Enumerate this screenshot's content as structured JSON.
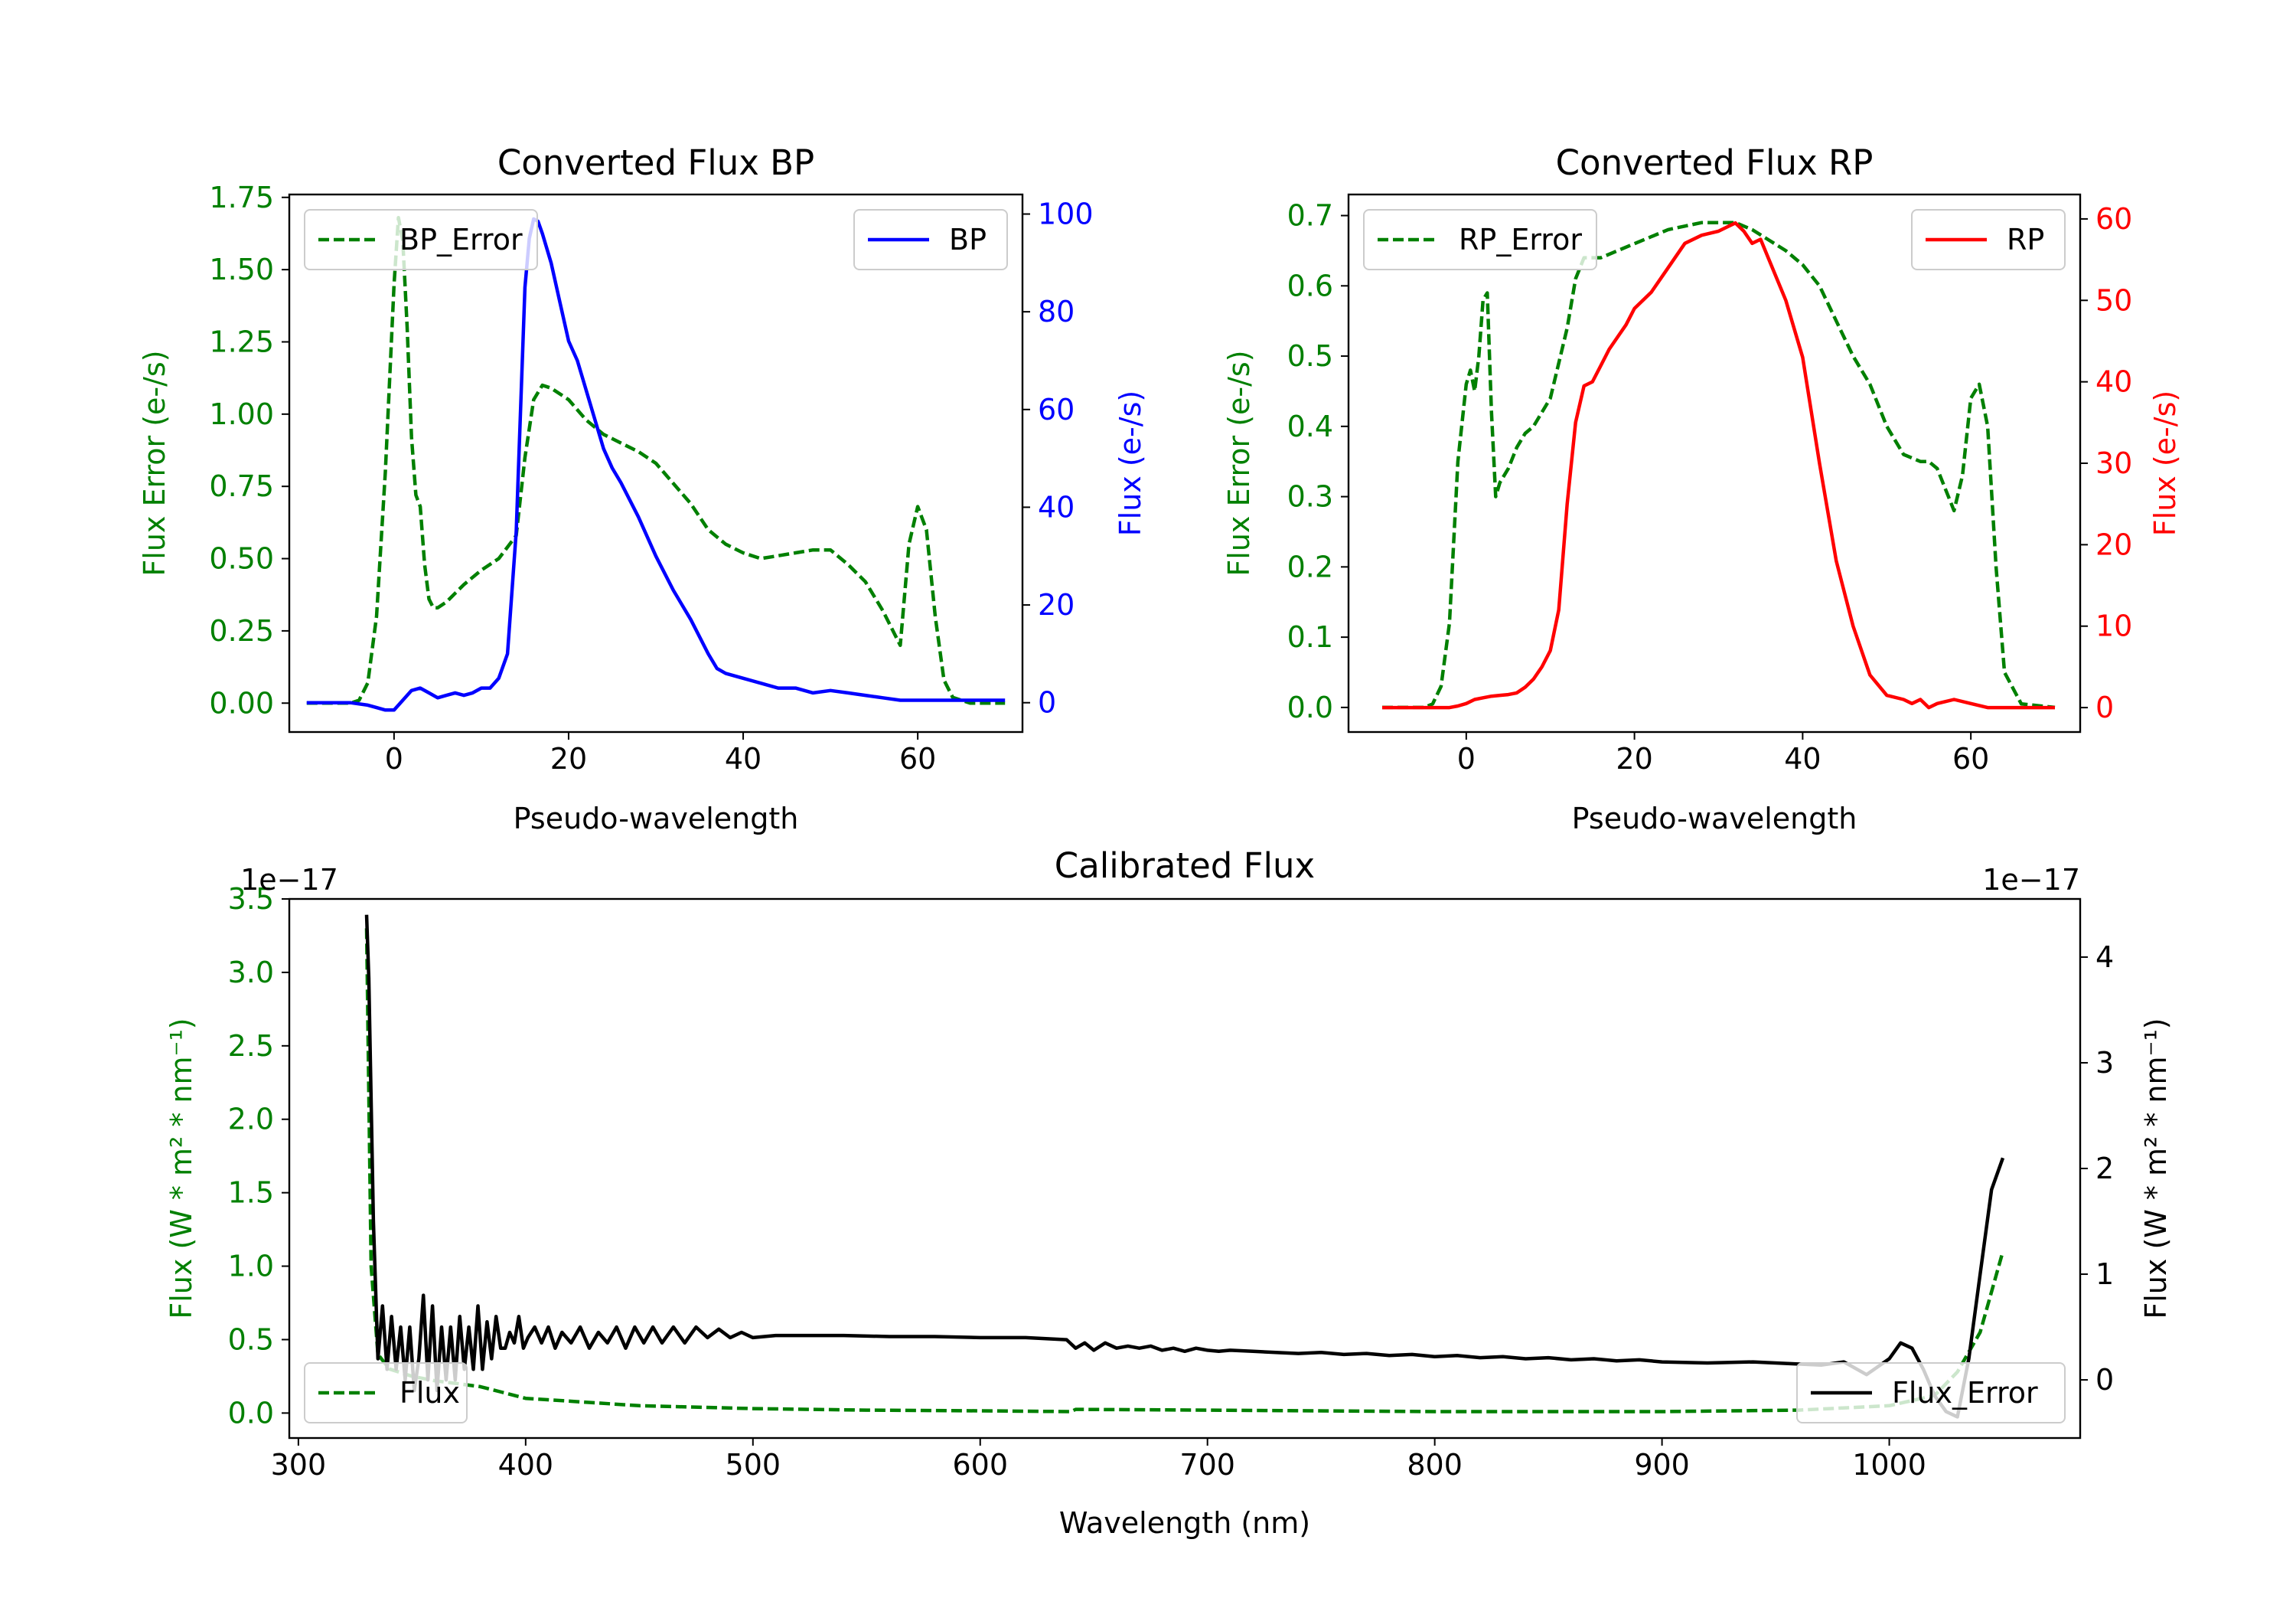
{
  "chart_data": [
    {
      "id": "bp",
      "type": "line",
      "title": "Converted Flux BP",
      "xlabel": "Pseudo-wavelength",
      "xlim": [
        -12,
        72
      ],
      "xticks": [
        0,
        20,
        40,
        60
      ],
      "left_axis": {
        "label": "Flux Error (e-/s)",
        "color": "#008000",
        "lim": [
          -0.1,
          1.76
        ],
        "ticks": [
          "0.00",
          "0.25",
          "0.50",
          "0.75",
          "1.00",
          "1.25",
          "1.50",
          "1.75"
        ]
      },
      "right_axis": {
        "label": "Flux (e-/s)",
        "color": "#0000ff",
        "lim": [
          -6,
          104
        ],
        "ticks": [
          "0",
          "20",
          "40",
          "60",
          "80",
          "100"
        ]
      },
      "legend_left": {
        "label": "BP_Error",
        "position": "upper left"
      },
      "legend_right": {
        "label": "BP",
        "position": "upper right"
      },
      "series": [
        {
          "name": "BP_Error",
          "axis": "left",
          "color": "#008000",
          "style": "dashed",
          "x": [
            -10,
            -5,
            -4,
            -3,
            -2,
            -1,
            0,
            0.5,
            1,
            1.5,
            2,
            2.5,
            3,
            3.5,
            4,
            4.5,
            5,
            6,
            7,
            8,
            10,
            12,
            14,
            15,
            16,
            17,
            18,
            20,
            22,
            24,
            26,
            28,
            30,
            32,
            34,
            36,
            38,
            40,
            42,
            44,
            46,
            48,
            50,
            52,
            54,
            56,
            57,
            58,
            59,
            60,
            61,
            62,
            63,
            64,
            66,
            70
          ],
          "y": [
            0.0,
            0.0,
            0.01,
            0.07,
            0.3,
            0.8,
            1.45,
            1.68,
            1.6,
            1.3,
            0.92,
            0.72,
            0.68,
            0.48,
            0.36,
            0.33,
            0.33,
            0.35,
            0.38,
            0.41,
            0.46,
            0.5,
            0.58,
            0.85,
            1.05,
            1.1,
            1.09,
            1.05,
            0.98,
            0.93,
            0.9,
            0.87,
            0.83,
            0.76,
            0.69,
            0.6,
            0.55,
            0.52,
            0.5,
            0.51,
            0.52,
            0.53,
            0.53,
            0.48,
            0.42,
            0.32,
            0.26,
            0.2,
            0.55,
            0.68,
            0.6,
            0.3,
            0.08,
            0.02,
            0.0,
            0.0
          ]
        },
        {
          "name": "BP",
          "axis": "right",
          "color": "#0000ff",
          "style": "solid",
          "x": [
            -10,
            -5,
            -3,
            -2,
            -1,
            0,
            1,
            2,
            3,
            4,
            5,
            6,
            7,
            8,
            9,
            10,
            11,
            12,
            13,
            14,
            14.5,
            15,
            15.5,
            16,
            16.5,
            17,
            18,
            19,
            20,
            21,
            22,
            23,
            24,
            25,
            26,
            28,
            30,
            32,
            34,
            36,
            37,
            38,
            40,
            42,
            44,
            46,
            48,
            50,
            52,
            54,
            56,
            58,
            60,
            62,
            64,
            66,
            70
          ],
          "y": [
            0,
            0,
            -0.5,
            -1,
            -1.5,
            -1.5,
            0.5,
            2.5,
            3,
            2,
            1,
            1.5,
            2,
            1.5,
            2,
            3,
            3,
            5,
            10,
            35,
            60,
            85,
            95,
            99,
            98.5,
            96,
            90,
            82,
            74,
            70,
            64,
            58,
            52,
            48,
            45,
            38,
            30,
            23,
            17,
            10,
            7,
            6,
            5,
            4,
            3,
            3,
            2,
            2.5,
            2,
            1.5,
            1,
            0.5,
            0.5,
            0.5,
            0.5,
            0.5,
            0.5
          ]
        }
      ]
    },
    {
      "id": "rp",
      "type": "line",
      "title": "Converted Flux RP",
      "xlabel": "Pseudo-wavelength",
      "xlim": [
        -14,
        73
      ],
      "xticks": [
        0,
        20,
        40,
        60
      ],
      "left_axis": {
        "label": "Flux Error (e-/s)",
        "color": "#008000",
        "lim": [
          -0.035,
          0.73
        ],
        "ticks": [
          "0.0",
          "0.1",
          "0.2",
          "0.3",
          "0.4",
          "0.5",
          "0.6",
          "0.7"
        ]
      },
      "right_axis": {
        "label": "Flux (e-/s)",
        "color": "#ff0000",
        "lim": [
          -3,
          63
        ],
        "ticks": [
          "0",
          "10",
          "20",
          "30",
          "40",
          "50",
          "60"
        ]
      },
      "legend_left": {
        "label": "RP_Error",
        "position": "upper left"
      },
      "legend_right": {
        "label": "RP",
        "position": "upper right"
      },
      "series": [
        {
          "name": "RP_Error",
          "axis": "left",
          "color": "#008000",
          "style": "dashed",
          "x": [
            -10,
            -5,
            -4,
            -3,
            -2,
            -1,
            0,
            0.5,
            1,
            1.5,
            2,
            2.5,
            3,
            3.5,
            4,
            5,
            6,
            7,
            8,
            10,
            12,
            13,
            14,
            16,
            18,
            20,
            22,
            24,
            26,
            28,
            30,
            32,
            34,
            36,
            38,
            40,
            42,
            44,
            46,
            48,
            50,
            52,
            54,
            55,
            56,
            57,
            58,
            59,
            60,
            61,
            62,
            63,
            64,
            66,
            70
          ],
          "y": [
            0.0,
            0.0,
            0.005,
            0.03,
            0.12,
            0.35,
            0.46,
            0.48,
            0.45,
            0.5,
            0.58,
            0.59,
            0.42,
            0.3,
            0.32,
            0.34,
            0.37,
            0.39,
            0.4,
            0.44,
            0.54,
            0.61,
            0.64,
            0.64,
            0.65,
            0.66,
            0.67,
            0.68,
            0.685,
            0.69,
            0.69,
            0.69,
            0.68,
            0.665,
            0.65,
            0.63,
            0.6,
            0.55,
            0.5,
            0.46,
            0.4,
            0.36,
            0.35,
            0.35,
            0.34,
            0.31,
            0.28,
            0.33,
            0.44,
            0.46,
            0.4,
            0.2,
            0.05,
            0.005,
            0.0
          ]
        },
        {
          "name": "RP",
          "axis": "right",
          "color": "#ff0000",
          "style": "solid",
          "x": [
            -10,
            -5,
            -3,
            -2,
            -1,
            0,
            1,
            2,
            3,
            4,
            5,
            6,
            7,
            8,
            9,
            10,
            11,
            12,
            13,
            14,
            15,
            16,
            17,
            18,
            19,
            20,
            22,
            24,
            26,
            28,
            30,
            31,
            32,
            33,
            34,
            35,
            36,
            38,
            40,
            42,
            44,
            46,
            48,
            50,
            52,
            53,
            54,
            55,
            56,
            58,
            60,
            62,
            64,
            66,
            70
          ],
          "y": [
            0,
            0,
            0,
            0,
            0.2,
            0.5,
            1,
            1.2,
            1.4,
            1.5,
            1.6,
            1.8,
            2.5,
            3.5,
            5,
            7,
            12,
            25,
            35,
            39.5,
            40,
            42,
            44,
            45.5,
            47,
            49,
            51,
            54,
            57,
            58,
            58.5,
            59,
            59.5,
            58.5,
            57,
            57.5,
            55,
            50,
            43,
            30,
            18,
            10,
            4,
            1.5,
            1,
            0.5,
            1,
            0,
            0.5,
            1,
            0.5,
            0,
            0,
            0,
            0
          ]
        }
      ]
    },
    {
      "id": "cal",
      "type": "line",
      "title": "Calibrated Flux",
      "xlabel": "Wavelength (nm)",
      "xlim": [
        296,
        1084
      ],
      "xticks": [
        300,
        400,
        500,
        600,
        700,
        800,
        900,
        1000
      ],
      "left_axis": {
        "label": "Flux (W * m² * nm⁻¹)",
        "color": "#008000",
        "lim": [
          -0.17,
          3.5
        ],
        "ticks": [
          "0.0",
          "0.5",
          "1.0",
          "1.5",
          "2.0",
          "2.5",
          "3.0",
          "3.5"
        ],
        "offset": "1e−17"
      },
      "right_axis": {
        "label": "Flux (W * m² * nm⁻¹)",
        "color": "#000000",
        "lim": [
          -0.55,
          4.55
        ],
        "ticks": [
          "0",
          "1",
          "2",
          "3",
          "4"
        ],
        "offset": "1e−17"
      },
      "legend_left": {
        "label": "Flux",
        "position": "lower left"
      },
      "legend_right": {
        "label": "Flux_Error",
        "position": "lower right"
      },
      "series": [
        {
          "name": "Flux_Error",
          "axis": "left",
          "color": "#008000",
          "style": "dashed",
          "x": [
            330,
            332,
            335,
            340,
            350,
            360,
            370,
            380,
            390,
            400,
            420,
            450,
            500,
            550,
            600,
            640,
            642,
            700,
            800,
            900,
            960,
            1000,
            1020,
            1030,
            1040,
            1050
          ],
          "y": [
            3.3,
            1.0,
            0.4,
            0.3,
            0.25,
            0.22,
            0.2,
            0.18,
            0.14,
            0.1,
            0.08,
            0.05,
            0.03,
            0.02,
            0.015,
            0.01,
            0.025,
            0.02,
            0.01,
            0.01,
            0.02,
            0.05,
            0.12,
            0.28,
            0.55,
            1.1
          ]
        },
        {
          "name": "Flux",
          "axis": "right",
          "color": "#000000",
          "style": "solid",
          "x": [
            330,
            331,
            333,
            335,
            337,
            339,
            341,
            343,
            345,
            347,
            349,
            351,
            353,
            355,
            357,
            359,
            361,
            363,
            365,
            367,
            369,
            371,
            373,
            375,
            377,
            379,
            381,
            383,
            385,
            387,
            389,
            391,
            393,
            395,
            397,
            399,
            401,
            404,
            407,
            410,
            413,
            416,
            420,
            424,
            428,
            432,
            436,
            440,
            444,
            448,
            452,
            456,
            460,
            465,
            470,
            475,
            480,
            485,
            490,
            495,
            500,
            510,
            520,
            540,
            560,
            580,
            600,
            620,
            638,
            642,
            646,
            650,
            655,
            660,
            665,
            670,
            675,
            680,
            685,
            690,
            695,
            700,
            705,
            710,
            720,
            730,
            740,
            750,
            760,
            770,
            780,
            790,
            800,
            810,
            820,
            830,
            840,
            850,
            860,
            870,
            880,
            890,
            900,
            920,
            940,
            960,
            970,
            980,
            990,
            1000,
            1005,
            1010,
            1015,
            1020,
            1025,
            1030,
            1035,
            1040,
            1045,
            1050
          ],
          "y": [
            4.4,
            3.8,
            1.5,
            0.2,
            0.7,
            0.1,
            0.6,
            0.1,
            0.5,
            0.0,
            0.5,
            -0.1,
            0.2,
            0.8,
            0.0,
            0.7,
            -0.1,
            0.5,
            0.0,
            0.5,
            0.0,
            0.6,
            0.1,
            0.5,
            0.1,
            0.7,
            0.1,
            0.55,
            0.2,
            0.6,
            0.3,
            0.3,
            0.45,
            0.35,
            0.6,
            0.3,
            0.4,
            0.5,
            0.35,
            0.5,
            0.3,
            0.45,
            0.35,
            0.5,
            0.3,
            0.45,
            0.35,
            0.5,
            0.3,
            0.5,
            0.35,
            0.5,
            0.35,
            0.5,
            0.35,
            0.5,
            0.4,
            0.48,
            0.4,
            0.45,
            0.4,
            0.42,
            0.42,
            0.42,
            0.41,
            0.41,
            0.4,
            0.4,
            0.38,
            0.3,
            0.35,
            0.28,
            0.35,
            0.3,
            0.32,
            0.3,
            0.32,
            0.28,
            0.3,
            0.27,
            0.3,
            0.28,
            0.27,
            0.28,
            0.27,
            0.26,
            0.25,
            0.26,
            0.24,
            0.25,
            0.23,
            0.24,
            0.22,
            0.23,
            0.21,
            0.22,
            0.2,
            0.21,
            0.19,
            0.2,
            0.18,
            0.19,
            0.17,
            0.16,
            0.17,
            0.15,
            0.14,
            0.17,
            0.05,
            0.2,
            0.35,
            0.3,
            0.1,
            -0.15,
            -0.3,
            -0.35,
            0.2,
            1.0,
            1.8,
            2.1
          ]
        }
      ]
    }
  ]
}
